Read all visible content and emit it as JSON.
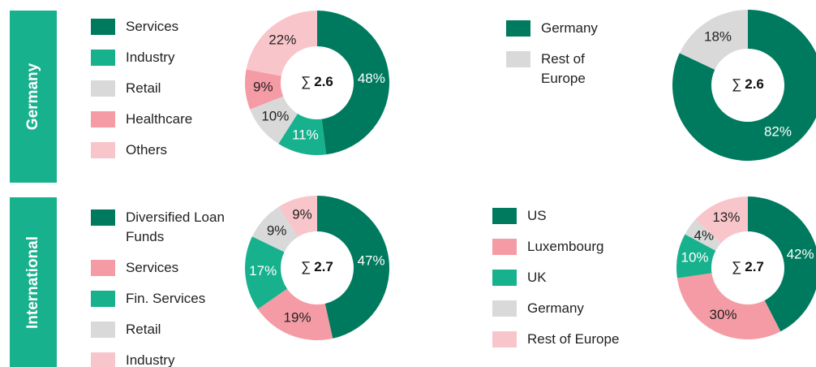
{
  "sections": [
    "Germany",
    "International"
  ],
  "chart_data": [
    {
      "type": "donut",
      "total_symbol": "∑",
      "total": 2.6,
      "categories": [
        "Services",
        "Industry",
        "Retail",
        "Healthcare",
        "Others"
      ],
      "values": [
        48,
        11,
        10,
        9,
        22
      ],
      "colors": [
        "#007a5e",
        "#17b18e",
        "#d9d9d9",
        "#f59ba5",
        "#f8c5cb"
      ]
    },
    {
      "type": "donut",
      "total_symbol": "∑",
      "total": 2.6,
      "categories": [
        "Germany",
        "Rest of Europe"
      ],
      "values": [
        82,
        18
      ],
      "colors": [
        "#007a5e",
        "#d9d9d9"
      ]
    },
    {
      "type": "donut",
      "total_symbol": "∑",
      "total": 2.7,
      "categories": [
        "Diversified Loan Funds",
        "Services",
        "Fin. Services",
        "Retail",
        "Industry"
      ],
      "values": [
        47,
        19,
        17,
        9,
        9
      ],
      "colors": [
        "#007a5e",
        "#f59ba5",
        "#17b18e",
        "#d9d9d9",
        "#f8c5cb"
      ]
    },
    {
      "type": "donut",
      "total_symbol": "∑",
      "total": 2.7,
      "categories": [
        "US",
        "Luxembourg",
        "UK",
        "Germany",
        "Rest of Europe"
      ],
      "values": [
        42,
        30,
        10,
        4,
        13
      ],
      "colors": [
        "#007a5e",
        "#f59ba5",
        "#17b18e",
        "#d9d9d9",
        "#f8c5cb"
      ]
    }
  ]
}
